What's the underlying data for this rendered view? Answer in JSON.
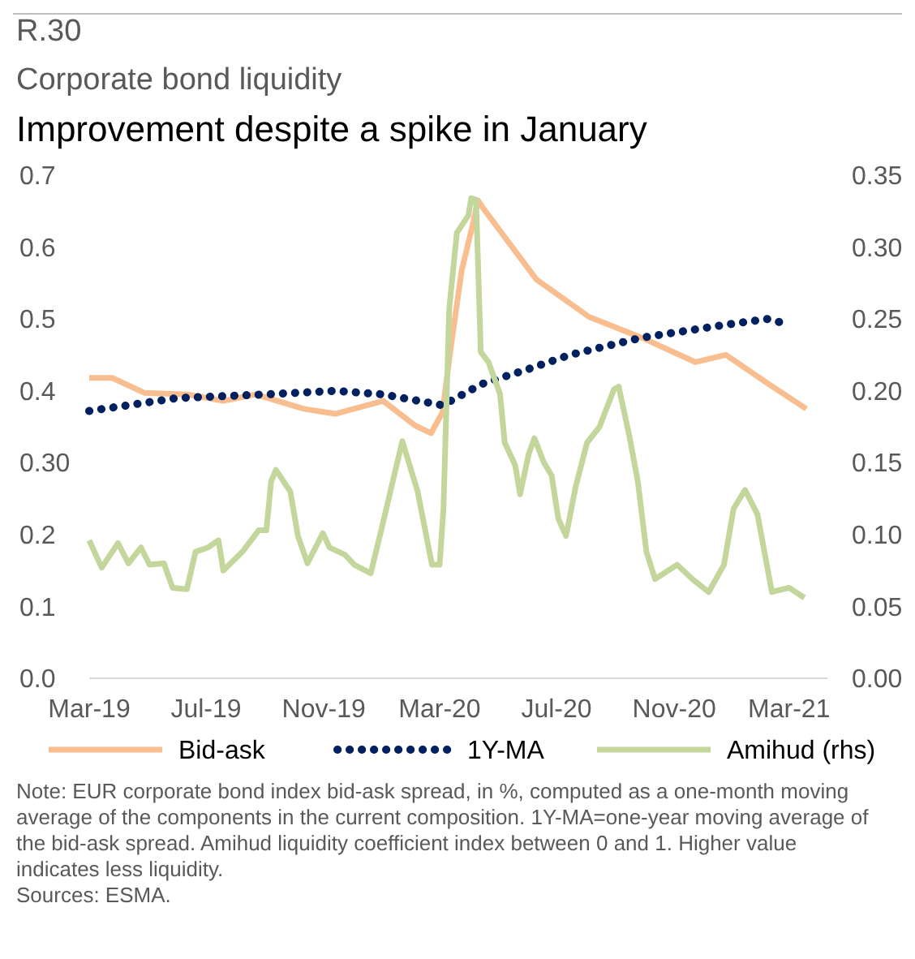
{
  "chart_data": {
    "type": "line",
    "title": "R.30",
    "subtitle": "Corporate bond liquidity",
    "annotations": [
      "Improvement despite a spike in January",
      "Note: EUR corporate bond index bid-ask spread, in %, computed as a one-month moving average of the components in the current composition. 1Y-MA=one-year moving average of the bid-ask spread. Amihud liquidity coefficient index between 0 and 1. Higher value indicates less liquidity.",
      "Sources: ESMA."
    ],
    "xlim": [
      "2019-03-01",
      "2021-04-10"
    ],
    "xticks": [
      {
        "value": "2019-03-01",
        "label": "Mar-19"
      },
      {
        "value": "2019-07-01",
        "label": "Jul-19"
      },
      {
        "value": "2019-11-01",
        "label": "Nov-19"
      },
      {
        "value": "2020-03-01",
        "label": "Mar-20"
      },
      {
        "value": "2020-07-01",
        "label": "Jul-20"
      },
      {
        "value": "2020-11-01",
        "label": "Nov-20"
      },
      {
        "value": "2021-03-01",
        "label": "Mar-21"
      }
    ],
    "ylim": [
      0,
      0.7
    ],
    "yticks": [
      {
        "value": 0,
        "label": "0.0"
      },
      0.1,
      0.2,
      {
        "value": 0.3,
        "label": "0.30"
      },
      0.4,
      0.5,
      0.6,
      0.7
    ],
    "y2lim": [
      0,
      0.35
    ],
    "y2ticks": [
      {
        "value": 0,
        "label": "0.00"
      },
      0.05,
      {
        "value": 0.1,
        "label": "0.10"
      },
      0.15,
      {
        "value": 0.2,
        "label": "0.20"
      },
      0.25,
      {
        "value": 0.3,
        "label": "0.30"
      },
      0.35
    ],
    "grid": false,
    "legend": "bottom",
    "series": [
      {
        "name": "Bid-ask",
        "color": "#f9be8f",
        "line_style": "solid",
        "x": [
          "2019-03-01",
          "2019-03-25",
          "2019-04-28",
          "2019-06-12",
          "2019-07-19",
          "2019-08-22",
          "2019-10-11",
          "2019-11-13",
          "2020-01-02",
          "2020-02-04",
          "2020-02-21",
          "2020-03-04",
          "2020-03-12",
          "2020-03-24",
          "2020-04-05",
          "2020-04-10",
          "2020-04-15",
          "2020-05-13",
          "2020-06-10",
          "2020-08-04",
          "2020-09-28",
          "2020-11-23",
          "2020-12-25",
          "2021-02-07",
          "2021-03-19"
        ],
        "values": [
          0.418,
          0.418,
          0.397,
          0.395,
          0.386,
          0.395,
          0.375,
          0.368,
          0.386,
          0.352,
          0.341,
          0.37,
          0.454,
          0.567,
          0.634,
          0.665,
          0.655,
          0.605,
          0.555,
          0.503,
          0.474,
          0.44,
          0.45,
          0.41,
          0.375
        ]
      },
      {
        "name": "1Y-MA",
        "color": "#002060",
        "line_style": "dotted",
        "x": [
          "2019-03-01",
          "2019-06-01",
          "2019-09-01",
          "2019-11-13",
          "2020-01-02",
          "2020-03-04",
          "2020-04-15",
          "2020-06-01",
          "2020-07-15",
          "2020-09-28",
          "2020-12-25",
          "2021-02-07",
          "2021-03-01"
        ],
        "values": [
          0.372,
          0.39,
          0.395,
          0.4,
          0.395,
          0.38,
          0.41,
          0.43,
          0.45,
          0.474,
          0.492,
          0.5,
          0.492
        ]
      },
      {
        "name": "Amihud (rhs)",
        "color": "#c3d69b",
        "line_style": "solid",
        "axis": "y2",
        "x": [
          "2019-03-01",
          "2019-03-14",
          "2019-03-31",
          "2019-04-11",
          "2019-04-24",
          "2019-05-03",
          "2019-05-18",
          "2019-05-27",
          "2019-06-11",
          "2019-06-20",
          "2019-07-03",
          "2019-07-14",
          "2019-07-19",
          "2019-08-08",
          "2019-08-25",
          "2019-09-02",
          "2019-09-07",
          "2019-09-12",
          "2019-09-27",
          "2019-10-05",
          "2019-10-15",
          "2019-10-31",
          "2019-11-07",
          "2019-11-23",
          "2019-12-03",
          "2019-12-20",
          "2019-12-31",
          "2020-01-22",
          "2020-02-07",
          "2020-02-22",
          "2020-03-01",
          "2020-03-05",
          "2020-03-11",
          "2020-03-19",
          "2020-03-31",
          "2020-04-03",
          "2020-04-08",
          "2020-04-13",
          "2020-04-21",
          "2020-05-03",
          "2020-05-08",
          "2020-05-19",
          "2020-05-24",
          "2020-06-02",
          "2020-06-08",
          "2020-06-18",
          "2020-06-26",
          "2020-07-03",
          "2020-07-11",
          "2020-07-21",
          "2020-08-02",
          "2020-08-15",
          "2020-08-30",
          "2020-09-04",
          "2020-09-15",
          "2020-09-24",
          "2020-10-03",
          "2020-10-12",
          "2020-11-04",
          "2020-11-20",
          "2020-12-07",
          "2020-12-23",
          "2021-01-02",
          "2021-01-14",
          "2021-01-27",
          "2021-02-11",
          "2021-03-01",
          "2021-03-17"
        ],
        "values": [
          0.096,
          0.077,
          0.094,
          0.08,
          0.091,
          0.079,
          0.08,
          0.063,
          0.062,
          0.088,
          0.091,
          0.096,
          0.075,
          0.088,
          0.103,
          0.103,
          0.137,
          0.145,
          0.13,
          0.099,
          0.08,
          0.101,
          0.091,
          0.086,
          0.079,
          0.073,
          0.103,
          0.165,
          0.13,
          0.079,
          0.079,
          0.118,
          0.257,
          0.31,
          0.322,
          0.334,
          0.333,
          0.227,
          0.22,
          0.198,
          0.164,
          0.148,
          0.128,
          0.156,
          0.167,
          0.15,
          0.141,
          0.111,
          0.099,
          0.133,
          0.164,
          0.175,
          0.201,
          0.203,
          0.169,
          0.137,
          0.088,
          0.069,
          0.079,
          0.069,
          0.06,
          0.079,
          0.118,
          0.131,
          0.114,
          0.06,
          0.063,
          0.056
        ]
      }
    ]
  }
}
